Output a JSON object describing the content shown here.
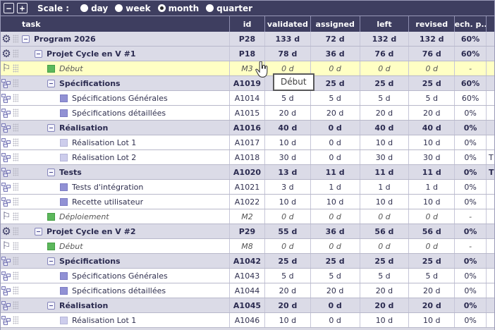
{
  "toolbar": {
    "zoom_out_label": "−",
    "zoom_in_label": "+",
    "scale_label": "Scale :",
    "scale_options": [
      {
        "label": "day",
        "selected": false
      },
      {
        "label": "week",
        "selected": false
      },
      {
        "label": "month",
        "selected": true
      },
      {
        "label": "quarter",
        "selected": false
      }
    ]
  },
  "icons": {
    "gear": "⚙",
    "flag": "⚐"
  },
  "colors": {
    "accent_navy": "#3e3e60",
    "group_row_bg": "#dbdbe7",
    "highlight_row_bg": "#ffffc4",
    "milestone_green": "#5cb85c",
    "task_purple": "#9191d4",
    "task_light_purple": "#cdcdec"
  },
  "table": {
    "columns": [
      {
        "key": "task",
        "label": "task"
      },
      {
        "key": "id",
        "label": "id"
      },
      {
        "key": "validated",
        "label": "validated"
      },
      {
        "key": "assigned",
        "label": "assigned"
      },
      {
        "key": "left",
        "label": "left"
      },
      {
        "key": "revised",
        "label": "revised"
      },
      {
        "key": "tech",
        "label": "tech. p..."
      },
      {
        "key": "extra",
        "label": ""
      }
    ],
    "rows": [
      {
        "name": "Program 2026",
        "id": "P28",
        "validated": "133 d",
        "assigned": "72 d",
        "left": "132 d",
        "revised": "132 d",
        "tech": "60%",
        "extra": "",
        "level": 1,
        "kind": "group",
        "icon": "gear",
        "marker": "collapse",
        "highlight": false
      },
      {
        "name": "Projet Cycle en V #1",
        "id": "P18",
        "validated": "78 d",
        "assigned": "36 d",
        "left": "76 d",
        "revised": "76 d",
        "tech": "60%",
        "extra": "",
        "level": 2,
        "kind": "group",
        "icon": "gear",
        "marker": "collapse",
        "highlight": false
      },
      {
        "name": "Début",
        "id": "M3",
        "validated": "0 d",
        "assigned": "0 d",
        "left": "0 d",
        "revised": "0 d",
        "tech": "-",
        "extra": "",
        "level": 3,
        "kind": "milestone",
        "icon": "flag",
        "marker": "green",
        "highlight": true
      },
      {
        "name": "Spécifications",
        "id": "A1019",
        "validated": "25 d",
        "assigned": "25 d",
        "left": "25 d",
        "revised": "25 d",
        "tech": "60%",
        "extra": "",
        "level": 3,
        "kind": "group",
        "icon": "tree",
        "marker": "collapse",
        "highlight": false
      },
      {
        "name": "Spécifications Générales",
        "id": "A1014",
        "validated": "5 d",
        "assigned": "5 d",
        "left": "5 d",
        "revised": "5 d",
        "tech": "60%",
        "extra": "",
        "level": 4,
        "kind": "task",
        "icon": "tree",
        "marker": "purple",
        "highlight": false
      },
      {
        "name": "Spécifications détaillées",
        "id": "A1015",
        "validated": "20 d",
        "assigned": "20 d",
        "left": "20 d",
        "revised": "20 d",
        "tech": "0%",
        "extra": "",
        "level": 4,
        "kind": "task",
        "icon": "tree",
        "marker": "purple",
        "highlight": false
      },
      {
        "name": "Réalisation",
        "id": "A1016",
        "validated": "40 d",
        "assigned": "0 d",
        "left": "40 d",
        "revised": "40 d",
        "tech": "0%",
        "extra": "",
        "level": 3,
        "kind": "group",
        "icon": "tree",
        "marker": "collapse",
        "highlight": false
      },
      {
        "name": "Réalisation Lot 1",
        "id": "A1017",
        "validated": "10 d",
        "assigned": "0 d",
        "left": "10 d",
        "revised": "10 d",
        "tech": "0%",
        "extra": "",
        "level": 4,
        "kind": "task",
        "icon": "tree",
        "marker": "lightpurple",
        "highlight": false
      },
      {
        "name": "Réalisation Lot 2",
        "id": "A1018",
        "validated": "30 d",
        "assigned": "0 d",
        "left": "30 d",
        "revised": "30 d",
        "tech": "0%",
        "extra": "T",
        "level": 4,
        "kind": "task",
        "icon": "tree",
        "marker": "lightpurple",
        "highlight": false
      },
      {
        "name": "Tests",
        "id": "A1020",
        "validated": "13 d",
        "assigned": "11 d",
        "left": "11 d",
        "revised": "11 d",
        "tech": "0%",
        "extra": "T",
        "level": 3,
        "kind": "group",
        "icon": "tree",
        "marker": "collapse",
        "highlight": false
      },
      {
        "name": "Tests d'intégration",
        "id": "A1021",
        "validated": "3 d",
        "assigned": "1 d",
        "left": "1 d",
        "revised": "1 d",
        "tech": "0%",
        "extra": "",
        "level": 4,
        "kind": "task",
        "icon": "tree",
        "marker": "purple",
        "highlight": false
      },
      {
        "name": "Recette utilisateur",
        "id": "A1022",
        "validated": "10 d",
        "assigned": "10 d",
        "left": "10 d",
        "revised": "10 d",
        "tech": "0%",
        "extra": "",
        "level": 4,
        "kind": "task",
        "icon": "tree",
        "marker": "purple",
        "highlight": false
      },
      {
        "name": "Déploiement",
        "id": "M2",
        "validated": "0 d",
        "assigned": "0 d",
        "left": "0 d",
        "revised": "0 d",
        "tech": "-",
        "extra": "",
        "level": 3,
        "kind": "milestone",
        "icon": "flag",
        "marker": "green",
        "highlight": false
      },
      {
        "name": "Projet Cycle en V #2",
        "id": "P29",
        "validated": "55 d",
        "assigned": "36 d",
        "left": "56 d",
        "revised": "56 d",
        "tech": "0%",
        "extra": "",
        "level": 2,
        "kind": "group",
        "icon": "gear",
        "marker": "collapse",
        "highlight": false
      },
      {
        "name": "Début",
        "id": "M8",
        "validated": "0 d",
        "assigned": "0 d",
        "left": "0 d",
        "revised": "0 d",
        "tech": "-",
        "extra": "",
        "level": 3,
        "kind": "milestone",
        "icon": "flag",
        "marker": "green",
        "highlight": false
      },
      {
        "name": "Spécifications",
        "id": "A1042",
        "validated": "25 d",
        "assigned": "25 d",
        "left": "25 d",
        "revised": "25 d",
        "tech": "0%",
        "extra": "",
        "level": 3,
        "kind": "group",
        "icon": "tree",
        "marker": "collapse",
        "highlight": false
      },
      {
        "name": "Spécifications Générales",
        "id": "A1043",
        "validated": "5 d",
        "assigned": "5 d",
        "left": "5 d",
        "revised": "5 d",
        "tech": "0%",
        "extra": "",
        "level": 4,
        "kind": "task",
        "icon": "tree",
        "marker": "purple",
        "highlight": false
      },
      {
        "name": "Spécifications détaillées",
        "id": "A1044",
        "validated": "20 d",
        "assigned": "20 d",
        "left": "20 d",
        "revised": "20 d",
        "tech": "0%",
        "extra": "",
        "level": 4,
        "kind": "task",
        "icon": "tree",
        "marker": "purple",
        "highlight": false
      },
      {
        "name": "Réalisation",
        "id": "A1045",
        "validated": "20 d",
        "assigned": "0 d",
        "left": "20 d",
        "revised": "20 d",
        "tech": "0%",
        "extra": "",
        "level": 3,
        "kind": "group",
        "icon": "tree",
        "marker": "collapse",
        "highlight": false
      },
      {
        "name": "Réalisation Lot 1",
        "id": "A1046",
        "validated": "10 d",
        "assigned": "0 d",
        "left": "10 d",
        "revised": "10 d",
        "tech": "0%",
        "extra": "",
        "level": 4,
        "kind": "task",
        "icon": "tree",
        "marker": "lightpurple",
        "highlight": false
      }
    ]
  },
  "tooltip": {
    "text": "Début"
  }
}
